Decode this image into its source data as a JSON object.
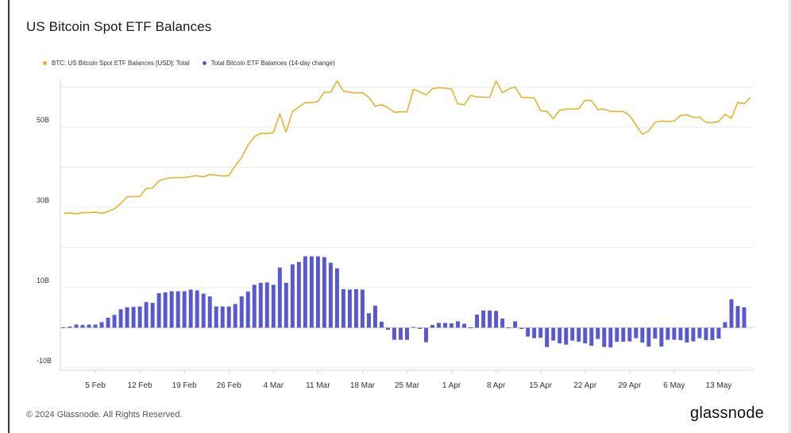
{
  "title": "US Bitcoin Spot ETF Balances",
  "footer": {
    "copyright": "© 2024 Glassnode. All Rights Reserved.",
    "brand": "glassnode"
  },
  "colors": {
    "line": "#e8b22e",
    "bars": "#5858d0",
    "grid": "#ececec",
    "axis": "#d6d6d6",
    "text": "#333333"
  },
  "chart_data": {
    "type": "line+bar",
    "title": "US Bitcoin Spot ETF Balances",
    "legend": [
      {
        "label": "BTC: US Bitcoin Spot ETF Balances [USD]: Total",
        "color": "#e8b22e"
      },
      {
        "label": "Total Bitcoin ETF Balances (14-day change)",
        "color": "#5858d0"
      }
    ],
    "y_ticks": [
      {
        "value": 50,
        "label": "50B"
      },
      {
        "value": 30,
        "label": "30B"
      },
      {
        "value": 10,
        "label": "10B"
      },
      {
        "value": -10,
        "label": "-10B"
      }
    ],
    "y_range": [
      -10,
      60
    ],
    "x_ticks": [
      {
        "day": 5,
        "label": "5 Feb"
      },
      {
        "day": 12,
        "label": "12 Feb"
      },
      {
        "day": 19,
        "label": "19 Feb"
      },
      {
        "day": 26,
        "label": "26 Feb"
      },
      {
        "day": 33,
        "label": "4 Mar"
      },
      {
        "day": 40,
        "label": "11 Mar"
      },
      {
        "day": 47,
        "label": "18 Mar"
      },
      {
        "day": 54,
        "label": "25 Mar"
      },
      {
        "day": 61,
        "label": "1 Apr"
      },
      {
        "day": 68,
        "label": "8 Apr"
      },
      {
        "day": 75,
        "label": "15 Apr"
      },
      {
        "day": 82,
        "label": "22 Apr"
      },
      {
        "day": 89,
        "label": "29 Apr"
      },
      {
        "day": 96,
        "label": "6 May"
      },
      {
        "day": 103,
        "label": "13 May"
      }
    ],
    "x_range": [
      0,
      108
    ],
    "total_usd_billions": [
      [
        0,
        28.5
      ],
      [
        1,
        28.6
      ],
      [
        2,
        28.4
      ],
      [
        3,
        28.7
      ],
      [
        4,
        28.7
      ],
      [
        5,
        28.8
      ],
      [
        6,
        28.5
      ],
      [
        7,
        29.0
      ],
      [
        8,
        29.6
      ],
      [
        9,
        31.0
      ],
      [
        10,
        32.6
      ],
      [
        11,
        32.7
      ],
      [
        12,
        32.7
      ],
      [
        13,
        34.7
      ],
      [
        14,
        34.8
      ],
      [
        15,
        36.6
      ],
      [
        16,
        37.1
      ],
      [
        17,
        37.4
      ],
      [
        18,
        37.4
      ],
      [
        19,
        37.4
      ],
      [
        20,
        37.7
      ],
      [
        21,
        37.9
      ],
      [
        22,
        37.6
      ],
      [
        23,
        38.2
      ],
      [
        24,
        38.0
      ],
      [
        25,
        37.8
      ],
      [
        26,
        37.9
      ],
      [
        27,
        40.4
      ],
      [
        28,
        42.4
      ],
      [
        29,
        45.5
      ],
      [
        30,
        47.6
      ],
      [
        31,
        48.5
      ],
      [
        32,
        48.4
      ],
      [
        33,
        48.6
      ],
      [
        34,
        53.3
      ],
      [
        35,
        48.8
      ],
      [
        36,
        53.9
      ],
      [
        37,
        55.0
      ],
      [
        38,
        56.1
      ],
      [
        39,
        56.1
      ],
      [
        40,
        56.4
      ],
      [
        41,
        58.7
      ],
      [
        42,
        58.7
      ],
      [
        43,
        61.5
      ],
      [
        44,
        59.0
      ],
      [
        45,
        58.7
      ],
      [
        46,
        58.5
      ],
      [
        47,
        58.6
      ],
      [
        48,
        57.4
      ],
      [
        49,
        55.2
      ],
      [
        50,
        55.6
      ],
      [
        51,
        54.9
      ],
      [
        52,
        53.7
      ],
      [
        53,
        53.8
      ],
      [
        54,
        53.8
      ],
      [
        55,
        59.4
      ],
      [
        56,
        58.8
      ],
      [
        57,
        58.0
      ],
      [
        58,
        59.6
      ],
      [
        59,
        59.8
      ],
      [
        60,
        59.7
      ],
      [
        61,
        59.5
      ],
      [
        62,
        55.8
      ],
      [
        63,
        55.6
      ],
      [
        64,
        57.9
      ],
      [
        65,
        57.5
      ],
      [
        66,
        57.5
      ],
      [
        67,
        57.4
      ],
      [
        68,
        61.5
      ],
      [
        69,
        58.6
      ],
      [
        70,
        59.5
      ],
      [
        71,
        60.0
      ],
      [
        72,
        57.4
      ],
      [
        73,
        57.4
      ],
      [
        74,
        57.3
      ],
      [
        75,
        54.1
      ],
      [
        76,
        53.9
      ],
      [
        77,
        52.1
      ],
      [
        78,
        54.2
      ],
      [
        79,
        54.5
      ],
      [
        80,
        54.5
      ],
      [
        81,
        54.6
      ],
      [
        82,
        56.7
      ],
      [
        83,
        56.6
      ],
      [
        84,
        54.4
      ],
      [
        85,
        54.5
      ],
      [
        86,
        53.9
      ],
      [
        87,
        53.9
      ],
      [
        88,
        53.9
      ],
      [
        89,
        52.9
      ],
      [
        90,
        50.5
      ],
      [
        91,
        48.2
      ],
      [
        92,
        49.1
      ],
      [
        93,
        51.2
      ],
      [
        94,
        51.5
      ],
      [
        95,
        51.4
      ],
      [
        96,
        51.5
      ],
      [
        97,
        52.9
      ],
      [
        98,
        53.1
      ],
      [
        99,
        52.4
      ],
      [
        100,
        52.5
      ],
      [
        101,
        51.2
      ],
      [
        102,
        51.1
      ],
      [
        103,
        51.4
      ],
      [
        104,
        53.2
      ],
      [
        105,
        52.2
      ],
      [
        106,
        56.2
      ],
      [
        107,
        55.8
      ],
      [
        108,
        57.4
      ]
    ],
    "change_14d_billions": [
      [
        0,
        0.0
      ],
      [
        1,
        0.3
      ],
      [
        2,
        0.8
      ],
      [
        3,
        0.7
      ],
      [
        4,
        0.8
      ],
      [
        5,
        0.8
      ],
      [
        6,
        1.4
      ],
      [
        7,
        2.5
      ],
      [
        8,
        3.2
      ],
      [
        9,
        4.6
      ],
      [
        10,
        5.1
      ],
      [
        11,
        5.2
      ],
      [
        12,
        5.3
      ],
      [
        13,
        6.4
      ],
      [
        14,
        6.2
      ],
      [
        15,
        8.6
      ],
      [
        16,
        8.8
      ],
      [
        17,
        9.1
      ],
      [
        18,
        9.1
      ],
      [
        19,
        9.1
      ],
      [
        20,
        9.5
      ],
      [
        21,
        9.3
      ],
      [
        22,
        8.5
      ],
      [
        23,
        7.8
      ],
      [
        24,
        5.3
      ],
      [
        25,
        5.3
      ],
      [
        26,
        5.3
      ],
      [
        27,
        5.9
      ],
      [
        28,
        7.8
      ],
      [
        29,
        9.0
      ],
      [
        30,
        10.7
      ],
      [
        31,
        11.2
      ],
      [
        32,
        11.3
      ],
      [
        33,
        10.7
      ],
      [
        34,
        15.0
      ],
      [
        35,
        11.2
      ],
      [
        36,
        15.8
      ],
      [
        37,
        16.4
      ],
      [
        38,
        17.8
      ],
      [
        39,
        17.8
      ],
      [
        40,
        17.8
      ],
      [
        41,
        17.6
      ],
      [
        42,
        16.2
      ],
      [
        43,
        14.8
      ],
      [
        44,
        9.6
      ],
      [
        45,
        9.5
      ],
      [
        46,
        9.6
      ],
      [
        47,
        9.5
      ],
      [
        48,
        3.6
      ],
      [
        49,
        5.5
      ],
      [
        50,
        1.5
      ],
      [
        51,
        -0.5
      ],
      [
        52,
        -3.0
      ],
      [
        53,
        -3.0
      ],
      [
        54,
        -3.0
      ],
      [
        55,
        0.2
      ],
      [
        56,
        -0.3
      ],
      [
        57,
        -3.6
      ],
      [
        58,
        0.7
      ],
      [
        59,
        1.2
      ],
      [
        60,
        1.2
      ],
      [
        61,
        1.1
      ],
      [
        62,
        1.6
      ],
      [
        63,
        1.0
      ],
      [
        64,
        -0.1
      ],
      [
        65,
        3.3
      ],
      [
        66,
        4.3
      ],
      [
        67,
        4.3
      ],
      [
        68,
        4.2
      ],
      [
        69,
        2.3
      ],
      [
        70,
        -0.1
      ],
      [
        71,
        1.6
      ],
      [
        72,
        -0.3
      ],
      [
        73,
        -2.2
      ],
      [
        74,
        -2.6
      ],
      [
        75,
        -2.5
      ],
      [
        76,
        -4.8
      ],
      [
        77,
        -3.2
      ],
      [
        78,
        -3.9
      ],
      [
        79,
        -4.2
      ],
      [
        80,
        -3.2
      ],
      [
        81,
        -3.5
      ],
      [
        82,
        -3.9
      ],
      [
        83,
        -4.5
      ],
      [
        84,
        -2.8
      ],
      [
        85,
        -4.8
      ],
      [
        86,
        -4.9
      ],
      [
        87,
        -3.5
      ],
      [
        88,
        -3.5
      ],
      [
        89,
        -3.4
      ],
      [
        90,
        -2.6
      ],
      [
        91,
        -3.7
      ],
      [
        92,
        -4.7
      ],
      [
        93,
        -2.7
      ],
      [
        94,
        -4.7
      ],
      [
        95,
        -3.0
      ],
      [
        96,
        -3.0
      ],
      [
        97,
        -3.1
      ],
      [
        98,
        -3.7
      ],
      [
        99,
        -3.4
      ],
      [
        100,
        -2.6
      ],
      [
        101,
        -3.1
      ],
      [
        102,
        -3.1
      ],
      [
        103,
        -2.7
      ],
      [
        104,
        1.4
      ],
      [
        105,
        7.1
      ],
      [
        106,
        5.4
      ],
      [
        107,
        5.1
      ]
    ]
  }
}
